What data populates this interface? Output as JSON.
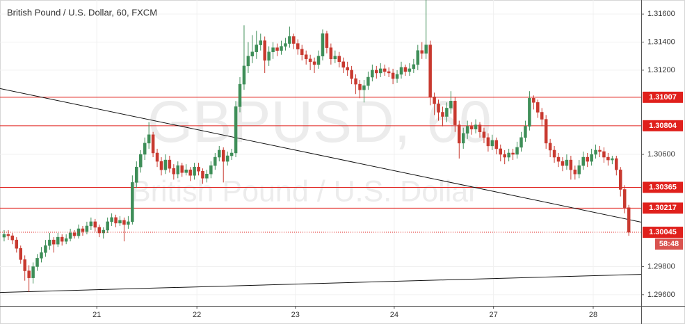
{
  "chart_data": {
    "type": "candlestick",
    "title": "British Pound / U.S. Dollar, 60, FXCM",
    "watermark": {
      "symbol": "GBPUSD, 60",
      "description": "British Pound / U.S. Dollar"
    },
    "up_color": "#3e8e58",
    "down_color": "#c8392f",
    "level_color": "#e0201c",
    "xlim": [
      -1,
      154
    ],
    "xticks": [
      {
        "value": 22.4,
        "label": "21"
      },
      {
        "value": 46.6,
        "label": "22"
      },
      {
        "value": 70.4,
        "label": "23"
      },
      {
        "value": 94.3,
        "label": "24"
      },
      {
        "value": 118.3,
        "label": "27"
      },
      {
        "value": 142.4,
        "label": "28"
      }
    ],
    "ylim": [
      1.2952,
      1.317
    ],
    "yticks": [
      {
        "value": 1.296,
        "label": "1.29600"
      },
      {
        "value": 1.298,
        "label": "1.29800"
      },
      {
        "value": 1.306,
        "label": "1.30600"
      },
      {
        "value": 1.312,
        "label": "1.31200"
      },
      {
        "value": 1.314,
        "label": "1.31400"
      },
      {
        "value": 1.316,
        "label": "1.31600"
      }
    ],
    "levels": [
      1.31007,
      1.30804,
      1.30365,
      1.30217
    ],
    "last_price": {
      "value": 1.30045,
      "countdown": "58:48"
    },
    "trendlines": [
      {
        "x": [
          -1,
          154
        ],
        "y": [
          1.31069,
          1.30117
        ]
      },
      {
        "x": [
          -1,
          154
        ],
        "y": [
          1.29616,
          1.29745
        ]
      }
    ],
    "candles": [
      [
        1.3001,
        1.3006,
        1.2998,
        1.3003
      ],
      [
        1.3003,
        1.3006,
        1.2999,
        1.3002
      ],
      [
        1.3002,
        1.3004,
        1.2996,
        1.2999
      ],
      [
        1.2999,
        1.3001,
        1.299,
        1.2993
      ],
      [
        1.2993,
        1.2995,
        1.2982,
        1.2985
      ],
      [
        1.2985,
        1.2988,
        1.297,
        1.2977
      ],
      [
        1.2977,
        1.2981,
        1.2962,
        1.2972
      ],
      [
        1.2972,
        1.2983,
        1.2968,
        1.298
      ],
      [
        1.298,
        1.2989,
        1.2977,
        1.2986
      ],
      [
        1.2986,
        1.2994,
        1.2983,
        1.299
      ],
      [
        1.299,
        1.2999,
        1.2987,
        1.2995
      ],
      [
        1.2995,
        1.3004,
        1.2992,
        1.2999
      ],
      [
        1.2999,
        1.3001,
        1.299,
        1.2996
      ],
      [
        1.2996,
        1.3004,
        1.2994,
        1.3001
      ],
      [
        1.3001,
        1.3003,
        1.2995,
        1.2998
      ],
      [
        1.2998,
        1.3003,
        1.2996,
        1.3
      ],
      [
        1.3,
        1.3007,
        1.2998,
        1.3004
      ],
      [
        1.3004,
        1.3006,
        1.3,
        1.3002
      ],
      [
        1.3002,
        1.301,
        1.3,
        1.3007
      ],
      [
        1.3007,
        1.3009,
        1.3002,
        1.3005
      ],
      [
        1.3005,
        1.3012,
        1.3003,
        1.3009
      ],
      [
        1.3009,
        1.3015,
        1.3006,
        1.3012
      ],
      [
        1.3012,
        1.3014,
        1.3005,
        1.3008
      ],
      [
        1.3008,
        1.301,
        1.3001,
        1.3004
      ],
      [
        1.3004,
        1.3008,
        1.3,
        1.3006
      ],
      [
        1.3006,
        1.3015,
        1.3004,
        1.3012
      ],
      [
        1.3012,
        1.3018,
        1.3009,
        1.3015
      ],
      [
        1.3015,
        1.3017,
        1.3008,
        1.3011
      ],
      [
        1.3011,
        1.3016,
        1.3009,
        1.3013
      ],
      [
        1.3013,
        1.3015,
        1.2998,
        1.301
      ],
      [
        1.301,
        1.3016,
        1.3007,
        1.3012
      ],
      [
        1.3012,
        1.3045,
        1.301,
        1.304
      ],
      [
        1.304,
        1.3055,
        1.3036,
        1.3051
      ],
      [
        1.3051,
        1.3063,
        1.3047,
        1.306
      ],
      [
        1.306,
        1.3072,
        1.3056,
        1.3068
      ],
      [
        1.3068,
        1.3083,
        1.3064,
        1.3074
      ],
      [
        1.3074,
        1.3076,
        1.3058,
        1.3061
      ],
      [
        1.3061,
        1.3064,
        1.3051,
        1.3055
      ],
      [
        1.3055,
        1.3058,
        1.3045,
        1.3049
      ],
      [
        1.3049,
        1.306,
        1.3046,
        1.3056
      ],
      [
        1.3056,
        1.3059,
        1.3047,
        1.305
      ],
      [
        1.305,
        1.3053,
        1.3042,
        1.3046
      ],
      [
        1.3046,
        1.3055,
        1.3043,
        1.3052
      ],
      [
        1.3052,
        1.3054,
        1.3044,
        1.3047
      ],
      [
        1.3047,
        1.3053,
        1.3045,
        1.3049
      ],
      [
        1.3049,
        1.3051,
        1.3041,
        1.3045
      ],
      [
        1.3045,
        1.3054,
        1.3042,
        1.3051
      ],
      [
        1.3051,
        1.3054,
        1.3045,
        1.3048
      ],
      [
        1.3048,
        1.305,
        1.3039,
        1.3043
      ],
      [
        1.3043,
        1.3049,
        1.304,
        1.3046
      ],
      [
        1.3046,
        1.3055,
        1.3043,
        1.3052
      ],
      [
        1.3052,
        1.3061,
        1.3049,
        1.3058
      ],
      [
        1.3058,
        1.3066,
        1.3055,
        1.3063
      ],
      [
        1.3063,
        1.3065,
        1.304,
        1.3055
      ],
      [
        1.3055,
        1.3062,
        1.3052,
        1.3059
      ],
      [
        1.3059,
        1.3064,
        1.3056,
        1.3061
      ],
      [
        1.3061,
        1.3098,
        1.3058,
        1.3094
      ],
      [
        1.3094,
        1.3115,
        1.309,
        1.311
      ],
      [
        1.311,
        1.3152,
        1.3106,
        1.3123
      ],
      [
        1.3123,
        1.314,
        1.3118,
        1.313
      ],
      [
        1.313,
        1.3145,
        1.3125,
        1.3133
      ],
      [
        1.3133,
        1.3148,
        1.3128,
        1.3138
      ],
      [
        1.3138,
        1.3146,
        1.3134,
        1.3141
      ],
      [
        1.3141,
        1.3144,
        1.3118,
        1.3127
      ],
      [
        1.3127,
        1.3137,
        1.3123,
        1.3133
      ],
      [
        1.3133,
        1.314,
        1.3128,
        1.3136
      ],
      [
        1.3136,
        1.3139,
        1.313,
        1.3134
      ],
      [
        1.3134,
        1.3141,
        1.3131,
        1.3137
      ],
      [
        1.3137,
        1.3143,
        1.3134,
        1.3139
      ],
      [
        1.3139,
        1.3151,
        1.3136,
        1.3144
      ],
      [
        1.3144,
        1.3146,
        1.3135,
        1.3139
      ],
      [
        1.3139,
        1.3142,
        1.3131,
        1.3135
      ],
      [
        1.3135,
        1.3138,
        1.3127,
        1.3131
      ],
      [
        1.3131,
        1.3134,
        1.3124,
        1.3128
      ],
      [
        1.3128,
        1.3131,
        1.312,
        1.3126
      ],
      [
        1.3126,
        1.3129,
        1.3118,
        1.3124
      ],
      [
        1.3124,
        1.3134,
        1.3121,
        1.313
      ],
      [
        1.313,
        1.3149,
        1.3127,
        1.3146
      ],
      [
        1.3146,
        1.3148,
        1.3132,
        1.3136
      ],
      [
        1.3136,
        1.3139,
        1.3124,
        1.3128
      ],
      [
        1.3128,
        1.3134,
        1.3125,
        1.313
      ],
      [
        1.313,
        1.3133,
        1.3122,
        1.3126
      ],
      [
        1.3126,
        1.3129,
        1.3118,
        1.3122
      ],
      [
        1.3122,
        1.3126,
        1.3116,
        1.312
      ],
      [
        1.312,
        1.3123,
        1.311,
        1.3114
      ],
      [
        1.3114,
        1.3117,
        1.3103,
        1.311
      ],
      [
        1.311,
        1.3113,
        1.31,
        1.3106
      ],
      [
        1.3106,
        1.3113,
        1.3097,
        1.3109
      ],
      [
        1.3109,
        1.3119,
        1.3106,
        1.3115
      ],
      [
        1.3115,
        1.3124,
        1.3112,
        1.312
      ],
      [
        1.312,
        1.3123,
        1.3114,
        1.3118
      ],
      [
        1.3118,
        1.3125,
        1.3115,
        1.3121
      ],
      [
        1.3121,
        1.3124,
        1.3116,
        1.3119
      ],
      [
        1.3119,
        1.3122,
        1.3115,
        1.3118
      ],
      [
        1.3118,
        1.3121,
        1.311,
        1.3114
      ],
      [
        1.3114,
        1.312,
        1.3111,
        1.3117
      ],
      [
        1.3117,
        1.3126,
        1.3114,
        1.3122
      ],
      [
        1.3122,
        1.3124,
        1.3116,
        1.3119
      ],
      [
        1.3119,
        1.3125,
        1.3116,
        1.3121
      ],
      [
        1.3121,
        1.3128,
        1.3118,
        1.3124
      ],
      [
        1.3124,
        1.3138,
        1.312,
        1.3134
      ],
      [
        1.3134,
        1.314,
        1.3128,
        1.3132
      ],
      [
        1.3132,
        1.317,
        1.3128,
        1.3138
      ],
      [
        1.3138,
        1.3141,
        1.3095,
        1.3101
      ],
      [
        1.3101,
        1.3104,
        1.3088,
        1.3096
      ],
      [
        1.3096,
        1.3099,
        1.3084,
        1.309
      ],
      [
        1.309,
        1.3094,
        1.308,
        1.3087
      ],
      [
        1.3087,
        1.3097,
        1.3083,
        1.3093
      ],
      [
        1.3093,
        1.3105,
        1.3089,
        1.3098
      ],
      [
        1.3098,
        1.3101,
        1.3076,
        1.3081
      ],
      [
        1.3081,
        1.3084,
        1.3057,
        1.3068
      ],
      [
        1.3068,
        1.3079,
        1.3064,
        1.3075
      ],
      [
        1.3075,
        1.3084,
        1.3071,
        1.308
      ],
      [
        1.308,
        1.3083,
        1.3074,
        1.3078
      ],
      [
        1.3078,
        1.3085,
        1.3075,
        1.3081
      ],
      [
        1.3081,
        1.3083,
        1.3072,
        1.3076
      ],
      [
        1.3076,
        1.3079,
        1.3068,
        1.3072
      ],
      [
        1.3072,
        1.3075,
        1.3062,
        1.3066
      ],
      [
        1.3066,
        1.3074,
        1.3063,
        1.307
      ],
      [
        1.307,
        1.3072,
        1.306,
        1.3064
      ],
      [
        1.3064,
        1.3067,
        1.3055,
        1.306
      ],
      [
        1.306,
        1.3063,
        1.3053,
        1.3058
      ],
      [
        1.3058,
        1.3064,
        1.3055,
        1.3061
      ],
      [
        1.3061,
        1.3064,
        1.3056,
        1.306
      ],
      [
        1.306,
        1.3069,
        1.3057,
        1.3065
      ],
      [
        1.3065,
        1.3076,
        1.3062,
        1.3072
      ],
      [
        1.3072,
        1.3084,
        1.3069,
        1.308
      ],
      [
        1.308,
        1.3105,
        1.3077,
        1.31
      ],
      [
        1.31,
        1.3102,
        1.3092,
        1.3097
      ],
      [
        1.3097,
        1.3099,
        1.3086,
        1.309
      ],
      [
        1.309,
        1.3093,
        1.308,
        1.3085
      ],
      [
        1.3085,
        1.3088,
        1.3064,
        1.3068
      ],
      [
        1.3068,
        1.3071,
        1.3058,
        1.3063
      ],
      [
        1.3063,
        1.3066,
        1.3054,
        1.3058
      ],
      [
        1.3058,
        1.3061,
        1.3051,
        1.3055
      ],
      [
        1.3055,
        1.3058,
        1.3048,
        1.3052
      ],
      [
        1.3052,
        1.306,
        1.3049,
        1.3056
      ],
      [
        1.3056,
        1.3059,
        1.3042,
        1.3049
      ],
      [
        1.3049,
        1.3052,
        1.3042,
        1.3046
      ],
      [
        1.3046,
        1.3056,
        1.3043,
        1.3052
      ],
      [
        1.3052,
        1.3062,
        1.3049,
        1.3058
      ],
      [
        1.3058,
        1.3061,
        1.3051,
        1.3055
      ],
      [
        1.3055,
        1.3064,
        1.3052,
        1.306
      ],
      [
        1.306,
        1.3067,
        1.3057,
        1.3063
      ],
      [
        1.3063,
        1.3066,
        1.3058,
        1.3062
      ],
      [
        1.3062,
        1.3065,
        1.3054,
        1.3058
      ],
      [
        1.3058,
        1.3061,
        1.3052,
        1.3056
      ],
      [
        1.3056,
        1.3059,
        1.3053,
        1.3057
      ],
      [
        1.3057,
        1.3059,
        1.3045,
        1.3049
      ],
      [
        1.3049,
        1.3051,
        1.303,
        1.3035
      ],
      [
        1.3035,
        1.3038,
        1.3018,
        1.3022
      ],
      [
        1.3022,
        1.3024,
        1.3002,
        1.30045
      ]
    ]
  }
}
